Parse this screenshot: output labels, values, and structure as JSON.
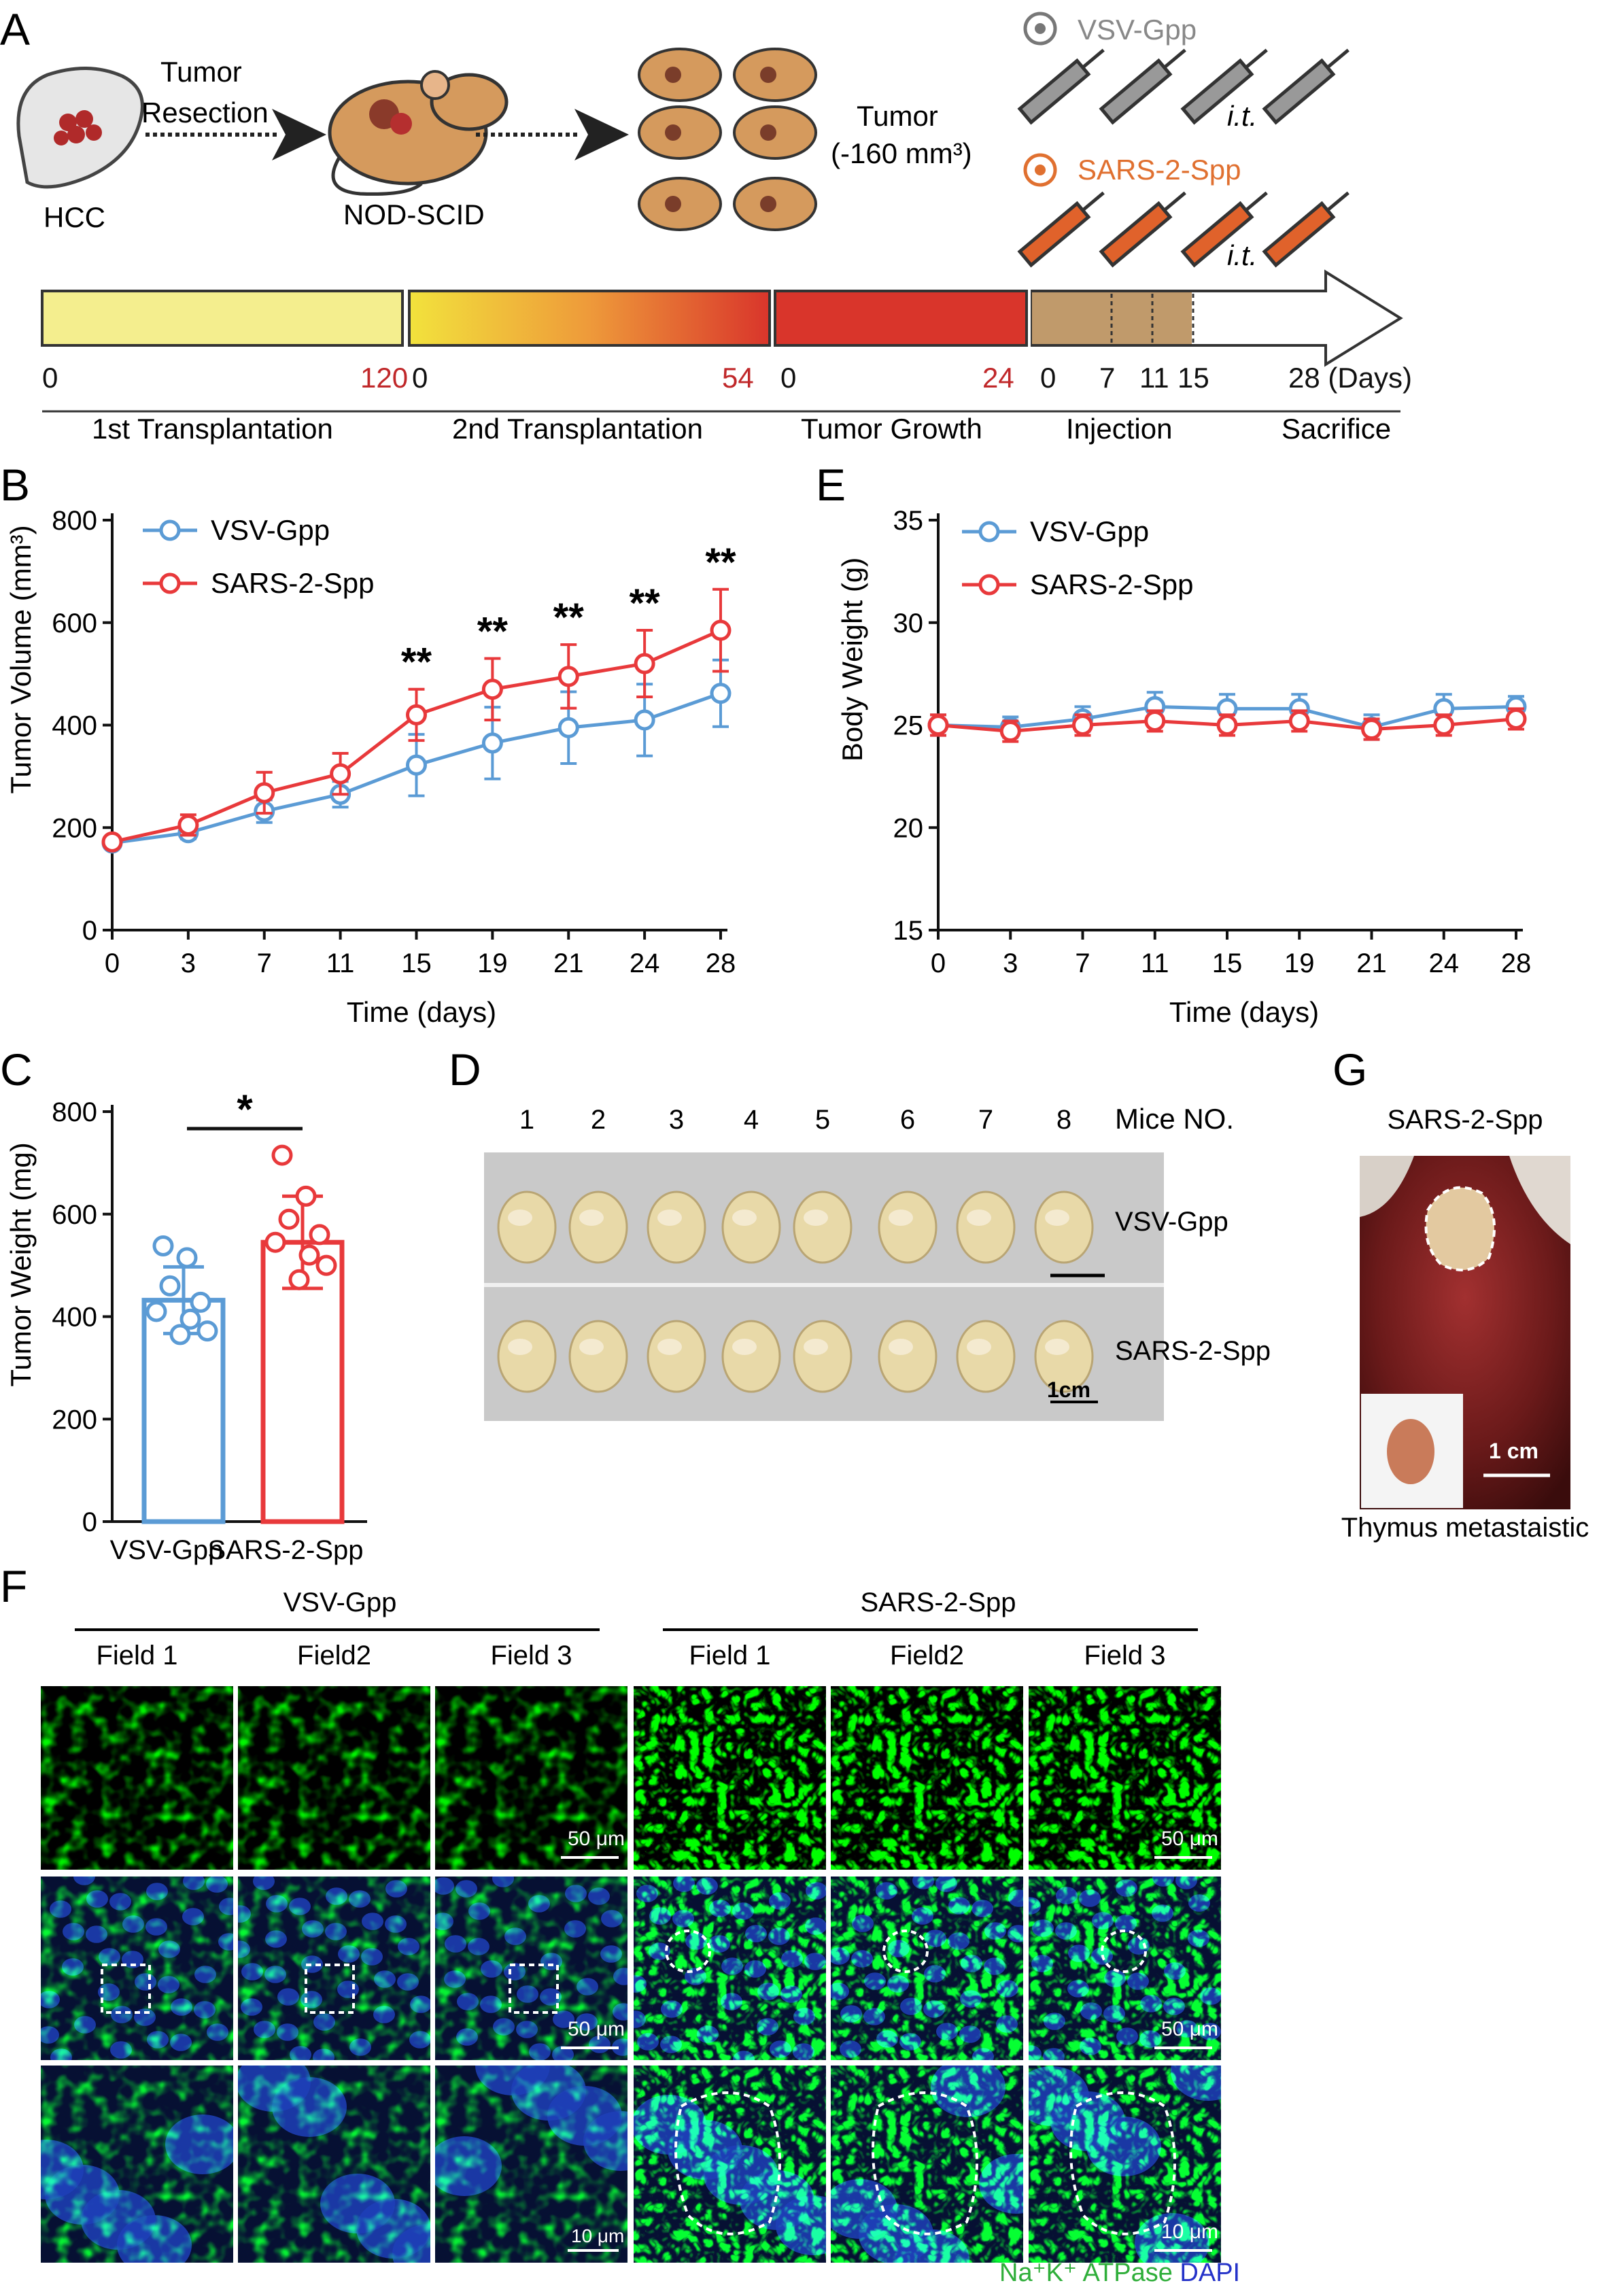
{
  "panels": {
    "A": "A",
    "B": "B",
    "C": "C",
    "D": "D",
    "E": "E",
    "F": "F",
    "G": "G"
  },
  "colors": {
    "vsv": "#5b9bd5",
    "sars": "#e8393b",
    "yellow": "#f4ee8e",
    "red": "#d9352b",
    "tan": "#c09a6b",
    "green": "#4ccb4c",
    "blue": "#2d4fd6"
  },
  "schematic": {
    "liver_label": "HCC",
    "resection_label": [
      "Tumor",
      "Resection"
    ],
    "mouse_label": "NOD-SCID",
    "tumor_label": [
      "Tumor",
      "(-160 mm³)"
    ],
    "vsv_label": "VSV-Gpp",
    "sars_label": "SARS-2-Spp",
    "it_label": "i.t.",
    "ticks": [
      {
        "text": "0",
        "red": false
      },
      {
        "text": "120",
        "red": true
      },
      {
        "text": "0",
        "red": false
      },
      {
        "text": "54",
        "red": true
      },
      {
        "text": "0",
        "red": false
      },
      {
        "text": "24",
        "red": true
      },
      {
        "text": "0",
        "red": false
      },
      {
        "text": "7",
        "red": false
      },
      {
        "text": "11",
        "red": false
      },
      {
        "text": "15",
        "red": false
      },
      {
        "text": "28 (Days)",
        "red": false
      }
    ],
    "phases": [
      "1st Transplantation",
      "2nd Transplantation",
      "Tumor Growth",
      "Injection",
      "Sacrifice"
    ]
  },
  "chart_data": [
    {
      "panel": "B",
      "type": "line",
      "x": [
        0,
        3,
        7,
        11,
        15,
        19,
        21,
        24,
        28
      ],
      "xlabel": "Time (days)",
      "ylabel": "Tumor Volume (mm³)",
      "ylim": [
        0,
        800
      ],
      "yticks": [
        0,
        200,
        400,
        600,
        800
      ],
      "series": [
        {
          "name": "VSV-Gpp",
          "values": [
            170,
            190,
            232,
            265,
            322,
            365,
            395,
            410,
            462
          ],
          "err": [
            10,
            12,
            22,
            25,
            60,
            70,
            70,
            70,
            65
          ]
        },
        {
          "name": "SARS-2-Spp",
          "values": [
            172,
            205,
            268,
            305,
            420,
            470,
            495,
            520,
            585
          ],
          "err": [
            10,
            20,
            40,
            40,
            50,
            60,
            62,
            65,
            80
          ]
        }
      ],
      "significance": [
        "",
        "",
        "",
        "",
        "**",
        "**",
        "**",
        "**",
        "**"
      ]
    },
    {
      "panel": "E",
      "type": "line",
      "x": [
        0,
        3,
        7,
        11,
        15,
        19,
        21,
        24,
        28
      ],
      "xlabel": "Time (days)",
      "ylabel": "Body Weight (g)",
      "ylim": [
        15,
        35
      ],
      "yticks": [
        15,
        20,
        25,
        30,
        35
      ],
      "series": [
        {
          "name": "VSV-Gpp",
          "values": [
            25.0,
            24.9,
            25.3,
            25.9,
            25.8,
            25.8,
            24.9,
            25.8,
            25.9
          ],
          "err": [
            0.5,
            0.5,
            0.6,
            0.7,
            0.7,
            0.7,
            0.6,
            0.7,
            0.5
          ]
        },
        {
          "name": "SARS-2-Spp",
          "values": [
            25.0,
            24.7,
            25.0,
            25.2,
            25.0,
            25.2,
            24.8,
            25.0,
            25.3
          ],
          "err": [
            0.5,
            0.5,
            0.5,
            0.5,
            0.5,
            0.5,
            0.5,
            0.5,
            0.5
          ]
        }
      ]
    },
    {
      "panel": "C",
      "type": "bar",
      "categories": [
        "VSV-Gpp",
        "SARS-2-Spp"
      ],
      "values": [
        432,
        545
      ],
      "err": [
        65,
        90
      ],
      "points": [
        [
          538,
          515,
          460,
          428,
          410,
          395,
          372,
          365
        ],
        [
          715,
          635,
          590,
          560,
          545,
          520,
          500,
          472
        ]
      ],
      "ylabel": "Tumor Weight (mg)",
      "ylim": [
        0,
        800
      ],
      "yticks": [
        0,
        200,
        400,
        600,
        800
      ],
      "significance": "*"
    }
  ],
  "photoD": {
    "header": "Mice NO.",
    "numbers": [
      "1",
      "2",
      "3",
      "4",
      "5",
      "6",
      "7",
      "8"
    ],
    "rows": [
      "VSV-Gpp",
      "SARS-2-Spp"
    ],
    "scale": "1cm"
  },
  "photoG": {
    "title": "SARS-2-Spp",
    "scale": "1 cm",
    "caption": "Thymus metastaistic"
  },
  "panelF": {
    "groups": [
      "VSV-Gpp",
      "SARS-2-Spp"
    ],
    "fields": [
      "Field 1",
      "Field2",
      "Field 3",
      "Field 1",
      "Field2",
      "Field 3"
    ],
    "scale_top": "50 μm",
    "scale_mid": "50 μm",
    "scale_bottom": "10 μm",
    "stain_green": "Na⁺K⁺ ATPase",
    "stain_blue": "DAPI"
  }
}
